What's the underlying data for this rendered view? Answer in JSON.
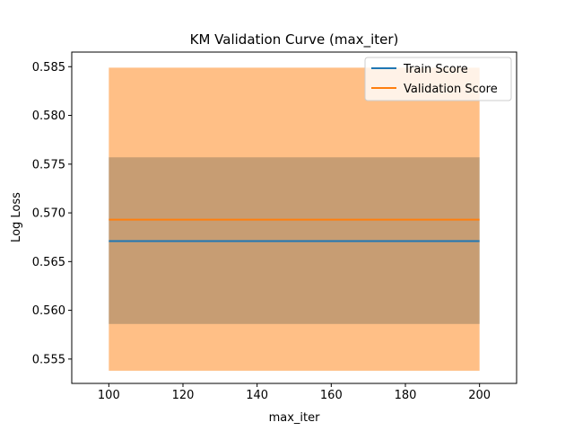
{
  "chart_data": {
    "type": "line",
    "title": "KM Validation Curve (max_iter)",
    "xlabel": "max_iter",
    "ylabel": "Log Loss",
    "xlim": [
      90,
      210
    ],
    "ylim": [
      0.5525,
      0.5865
    ],
    "x_ticks": [
      100,
      120,
      140,
      160,
      180,
      200
    ],
    "y_ticks": [
      0.555,
      0.56,
      0.565,
      0.57,
      0.575,
      0.58,
      0.585
    ],
    "y_tick_labels": [
      "0.555",
      "0.560",
      "0.565",
      "0.570",
      "0.575",
      "0.580",
      "0.585"
    ],
    "grid": false,
    "legend_position": "upper right",
    "x": [
      100,
      200
    ],
    "series": [
      {
        "name": "Train Score",
        "color": "#1f77b4",
        "values": [
          0.5671,
          0.5671
        ],
        "band": [
          0.5586,
          0.5757
        ],
        "band_alpha": 0.5
      },
      {
        "name": "Validation Score",
        "color": "#ff7f0e",
        "values": [
          0.5693,
          0.5693
        ],
        "band": [
          0.5538,
          0.5849
        ],
        "band_alpha": 0.5
      }
    ]
  }
}
